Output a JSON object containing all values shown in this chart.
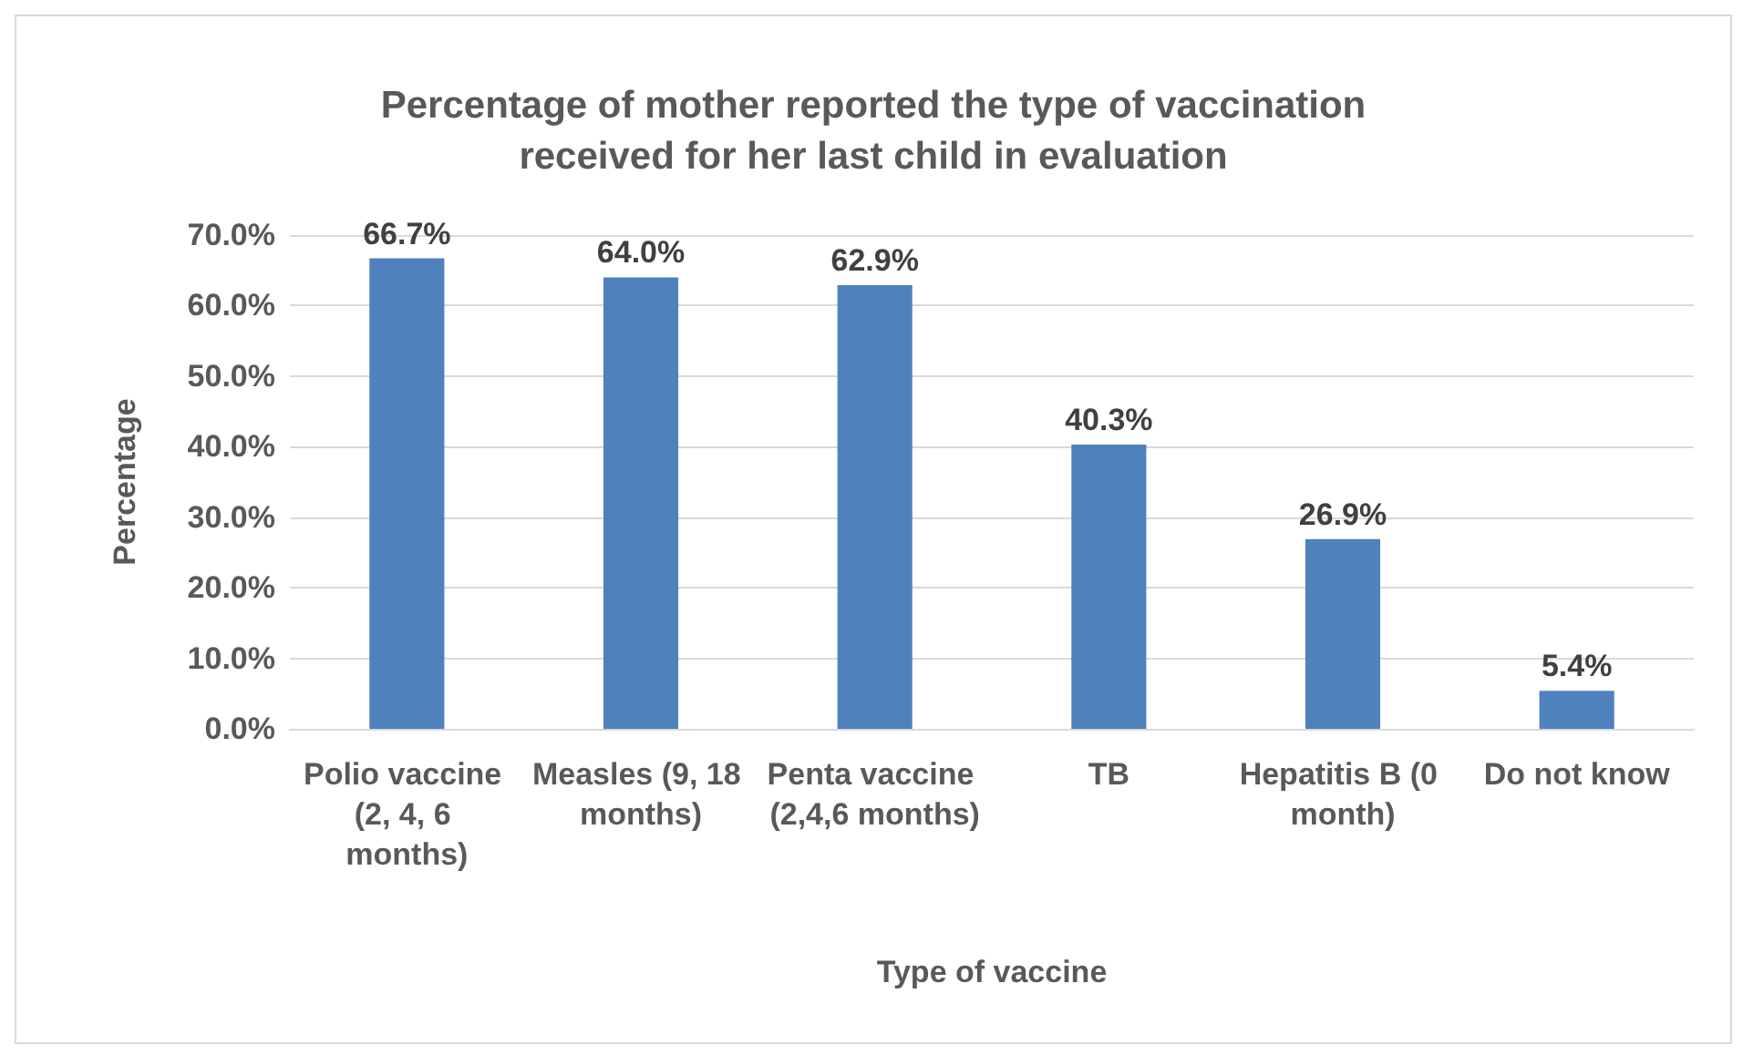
{
  "chart_data": {
    "type": "bar",
    "title": "Percentage of mother reported the type of vaccination\nreceived for her last child in evaluation",
    "xlabel": "Type of vaccine",
    "ylabel": "Percentage",
    "categories": [
      "Polio vaccine (2, 4, 6 months)",
      "Measles (9, 18 months)",
      "Penta vaccine (2,4,6 months)",
      "TB",
      "Hepatitis B (0 month)",
      "Do not know"
    ],
    "values": [
      66.7,
      64.0,
      62.9,
      40.3,
      26.9,
      5.4
    ],
    "value_labels": [
      "66.7%",
      "64.0%",
      "62.9%",
      "40.3%",
      "26.9%",
      "5.4%"
    ],
    "color": "#4f81bd",
    "ylim": [
      0,
      70
    ],
    "yticks": [
      {
        "value": 0,
        "label": "0.0%"
      },
      {
        "value": 10,
        "label": "10.0%"
      },
      {
        "value": 20,
        "label": "20.0%"
      },
      {
        "value": 30,
        "label": "30.0%"
      },
      {
        "value": 40,
        "label": "40.0%"
      },
      {
        "value": 50,
        "label": "50.0%"
      },
      {
        "value": 60,
        "label": "60.0%"
      },
      {
        "value": 70,
        "label": "70.0%"
      }
    ],
    "grid": "y"
  }
}
